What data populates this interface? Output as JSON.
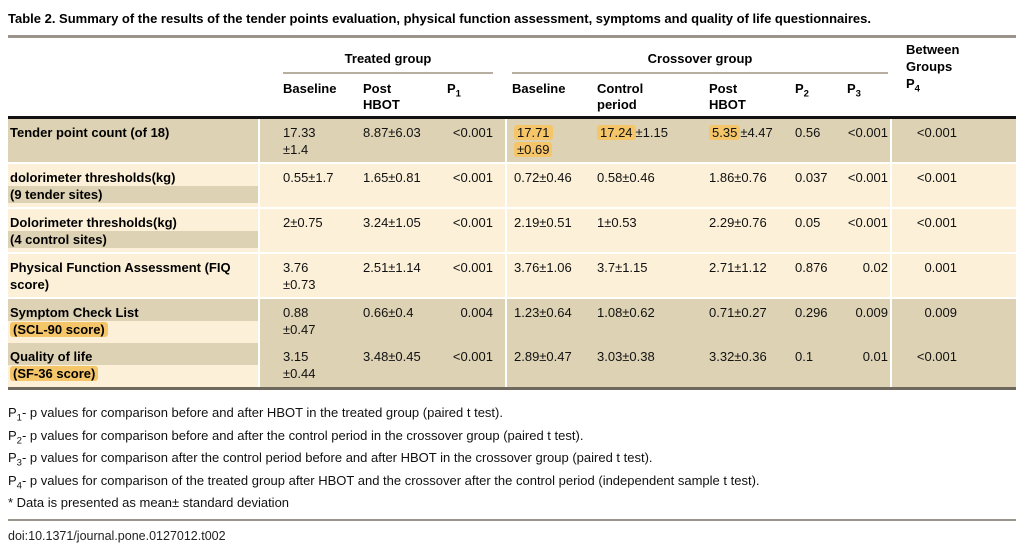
{
  "title": "Table 2.  Summary of the results of the tender points evaluation, physical function assessment, symptoms and quality of life questionnaires.",
  "doi": "doi:10.1371/journal.pone.0127012.t002",
  "colors": {
    "row_tan": "#ddd2b4",
    "row_cream": "#fcf1d8",
    "highlight": "#f4c569",
    "thin_header_rule": "#b7b0a1",
    "title_rule": "#9a948a",
    "header_black_rule": "#121212",
    "table_bottom_rule": "#6e685d"
  },
  "table": {
    "header": {
      "treated_group": "Treated group",
      "crossover_group": "Crossover group",
      "between_lines": [
        "Between",
        "Groups"
      ],
      "between_p": "4",
      "cols": [
        {
          "id": "treated-baseline",
          "lines": [
            "Baseline"
          ]
        },
        {
          "id": "treated-post-hbot",
          "lines": [
            "Post",
            "HBOT"
          ]
        },
        {
          "id": "p1",
          "p": "1"
        },
        {
          "id": "crossover-baseline",
          "lines": [
            "Baseline"
          ]
        },
        {
          "id": "control-period",
          "lines": [
            "Control",
            "period"
          ]
        },
        {
          "id": "crossover-post-hbot",
          "lines": [
            "Post",
            "HBOT"
          ]
        },
        {
          "id": "p2",
          "p": "2"
        },
        {
          "id": "p3",
          "p": "3"
        }
      ]
    },
    "rows": [
      {
        "label": "Tender point count (of 18)",
        "sublabel": null,
        "bg": "tan",
        "label_bg": "tan",
        "line1_bg": null,
        "sub_bg": null,
        "sub_hl": false,
        "separator": true,
        "cells": [
          {
            "parts": [
              {
                "t": "17.33"
              },
              {
                "br": true
              },
              {
                "t": "±1.4"
              }
            ]
          },
          {
            "parts": [
              {
                "t": "8.87±6.03"
              }
            ]
          },
          {
            "parts": [
              {
                "t": "<0.001"
              }
            ]
          },
          {
            "parts": [
              {
                "t": "17.71",
                "hl": true
              },
              {
                "br": true
              },
              {
                "t": "±0.69",
                "hl": true
              }
            ]
          },
          {
            "parts": [
              {
                "t": "17.24",
                "hl": true
              },
              {
                "t": "±1.15"
              }
            ]
          },
          {
            "parts": [
              {
                "t": "5.35",
                "hl": true
              },
              {
                "t": "±4.47"
              }
            ]
          },
          {
            "parts": [
              {
                "t": "0.56"
              }
            ]
          },
          {
            "parts": [
              {
                "t": "<0.001"
              }
            ]
          },
          {
            "parts": [
              {
                "t": "<0.001"
              }
            ]
          }
        ]
      },
      {
        "label": "dolorimeter thresholds(kg)",
        "sublabel": "(9 tender sites)",
        "bg": "cream",
        "label_bg": "cream",
        "line1_bg": null,
        "sub_bg": "tan",
        "sub_hl": false,
        "separator": true,
        "cells": [
          {
            "parts": [
              {
                "t": "0.55±1.7"
              }
            ]
          },
          {
            "parts": [
              {
                "t": "1.65±0.81"
              }
            ]
          },
          {
            "parts": [
              {
                "t": "<0.001"
              }
            ]
          },
          {
            "parts": [
              {
                "t": "0.72±0.46"
              }
            ]
          },
          {
            "parts": [
              {
                "t": "0.58±0.46"
              }
            ]
          },
          {
            "parts": [
              {
                "t": "1.86±0.76"
              }
            ]
          },
          {
            "parts": [
              {
                "t": "0.037"
              }
            ]
          },
          {
            "parts": [
              {
                "t": "<0.001"
              }
            ]
          },
          {
            "parts": [
              {
                "t": "<0.001"
              }
            ]
          }
        ]
      },
      {
        "label": "Dolorimeter thresholds(kg)",
        "sublabel": "(4 control sites)",
        "bg": "cream",
        "label_bg": "cream",
        "line1_bg": null,
        "sub_bg": "tan",
        "sub_hl": false,
        "separator": true,
        "cells": [
          {
            "parts": [
              {
                "t": "2±0.75"
              }
            ]
          },
          {
            "parts": [
              {
                "t": "3.24±1.05"
              }
            ]
          },
          {
            "parts": [
              {
                "t": "<0.001"
              }
            ]
          },
          {
            "parts": [
              {
                "t": "2.19±0.51"
              }
            ]
          },
          {
            "parts": [
              {
                "t": "1±0.53"
              }
            ]
          },
          {
            "parts": [
              {
                "t": "2.29±0.76"
              }
            ]
          },
          {
            "parts": [
              {
                "t": "0.05"
              }
            ]
          },
          {
            "parts": [
              {
                "t": "<0.001"
              }
            ]
          },
          {
            "parts": [
              {
                "t": "<0.001"
              }
            ]
          }
        ]
      },
      {
        "label": "Physical Function Assessment (FIQ score)",
        "sublabel": null,
        "bg": "cream",
        "label_bg": "cream",
        "line1_bg": null,
        "sub_bg": null,
        "sub_hl": false,
        "separator": true,
        "cells": [
          {
            "parts": [
              {
                "t": "3.76"
              },
              {
                "br": true
              },
              {
                "t": "±0.73"
              }
            ]
          },
          {
            "parts": [
              {
                "t": "2.51±1.14"
              }
            ]
          },
          {
            "parts": [
              {
                "t": "<0.001"
              }
            ]
          },
          {
            "parts": [
              {
                "t": "3.76±1.06"
              }
            ]
          },
          {
            "parts": [
              {
                "t": "3.7±1.15"
              }
            ]
          },
          {
            "parts": [
              {
                "t": "2.71±1.12"
              }
            ]
          },
          {
            "parts": [
              {
                "t": "0.876"
              }
            ]
          },
          {
            "parts": [
              {
                "t": "0.02"
              }
            ]
          },
          {
            "parts": [
              {
                "t": "0.001"
              }
            ]
          }
        ]
      },
      {
        "label": "Symptom Check List",
        "sublabel": "(SCL-90 score)",
        "bg": "tan",
        "label_bg": "cream",
        "line1_bg": "tan",
        "sub_bg": null,
        "sub_hl": true,
        "separator": false,
        "cells": [
          {
            "parts": [
              {
                "t": "0.88"
              },
              {
                "br": true
              },
              {
                "t": "±0.47"
              }
            ]
          },
          {
            "parts": [
              {
                "t": "0.66±0.4"
              }
            ]
          },
          {
            "parts": [
              {
                "t": "0.004"
              }
            ]
          },
          {
            "parts": [
              {
                "t": "1.23±0.64"
              }
            ]
          },
          {
            "parts": [
              {
                "t": "1.08±0.62"
              }
            ]
          },
          {
            "parts": [
              {
                "t": "0.71±0.27"
              }
            ]
          },
          {
            "parts": [
              {
                "t": "0.296"
              }
            ]
          },
          {
            "parts": [
              {
                "t": "0.009"
              }
            ]
          },
          {
            "parts": [
              {
                "t": "0.009"
              }
            ]
          }
        ]
      },
      {
        "label": "Quality of life",
        "sublabel": "(SF-36 score)",
        "bg": "tan",
        "label_bg": "cream",
        "line1_bg": "tan",
        "sub_bg": null,
        "sub_hl": true,
        "separator": false,
        "cells": [
          {
            "parts": [
              {
                "t": "3.15"
              },
              {
                "br": true
              },
              {
                "t": "±0.44"
              }
            ]
          },
          {
            "parts": [
              {
                "t": "3.48±0.45"
              }
            ]
          },
          {
            "parts": [
              {
                "t": "<0.001"
              }
            ]
          },
          {
            "parts": [
              {
                "t": "2.89±0.47"
              }
            ]
          },
          {
            "parts": [
              {
                "t": "3.03±0.38"
              }
            ]
          },
          {
            "parts": [
              {
                "t": "3.32±0.36"
              }
            ]
          },
          {
            "parts": [
              {
                "t": "0.1"
              }
            ]
          },
          {
            "parts": [
              {
                "t": "0.01"
              }
            ]
          },
          {
            "parts": [
              {
                "t": "<0.001"
              }
            ]
          }
        ]
      }
    ]
  },
  "footnotes": [
    {
      "p": "1",
      "text": "- p values for comparison before and after HBOT in the treated group (paired t test)."
    },
    {
      "p": "2",
      "text": "- p values for comparison before and after the control period in the crossover group (paired t test)."
    },
    {
      "p": "3",
      "text": "- p values for comparison after the control period before and after HBOT in the crossover group (paired t test)."
    },
    {
      "p": "4",
      "text": "- p values for comparison of the treated group after HBOT and the crossover after the control period (independent sample t test)."
    },
    {
      "p": null,
      "text": "* Data is presented as mean± standard deviation"
    }
  ]
}
